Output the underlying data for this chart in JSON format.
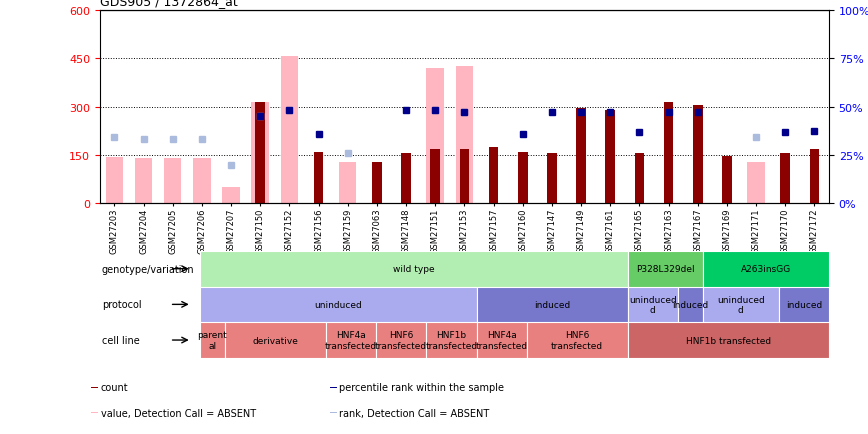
{
  "title": "GDS905 / 1372864_at",
  "samples": [
    "GSM27203",
    "GSM27204",
    "GSM27205",
    "GSM27206",
    "GSM27207",
    "GSM27150",
    "GSM27152",
    "GSM27156",
    "GSM27159",
    "GSM27063",
    "GSM27148",
    "GSM27151",
    "GSM27153",
    "GSM27157",
    "GSM27160",
    "GSM27147",
    "GSM27149",
    "GSM27161",
    "GSM27165",
    "GSM27163",
    "GSM27167",
    "GSM27169",
    "GSM27171",
    "GSM27170",
    "GSM27172"
  ],
  "count_present": [
    0,
    0,
    0,
    0,
    0,
    315,
    0,
    160,
    0,
    130,
    155,
    168,
    170,
    175,
    160,
    155,
    295,
    290,
    155,
    315,
    305,
    148,
    0,
    155,
    170
  ],
  "count_absent": [
    145,
    140,
    142,
    140,
    50,
    315,
    458,
    0,
    128,
    0,
    0,
    420,
    425,
    0,
    0,
    0,
    0,
    0,
    0,
    0,
    0,
    0,
    130,
    0,
    0
  ],
  "rank_present": [
    0,
    0,
    0,
    0,
    0,
    270,
    290,
    215,
    0,
    0,
    290,
    290,
    285,
    0,
    215,
    285,
    285,
    285,
    220,
    285,
    285,
    0,
    0,
    220,
    225
  ],
  "rank_absent": [
    205,
    200,
    200,
    200,
    120,
    270,
    290,
    0,
    155,
    0,
    0,
    290,
    285,
    0,
    0,
    0,
    0,
    0,
    0,
    0,
    0,
    0,
    205,
    0,
    0
  ],
  "ylim_left": [
    0,
    600
  ],
  "yticks_left": [
    0,
    150,
    300,
    450,
    600
  ],
  "yticks_right": [
    0,
    25,
    50,
    75,
    100
  ],
  "color_count_present": "#8B0000",
  "color_count_absent": "#FFB6C1",
  "color_rank_present": "#00008B",
  "color_rank_absent": "#AABBDD",
  "genotype_blocks": [
    {
      "label": "wild type",
      "start": 0,
      "end": 17,
      "color": "#B2EEB2"
    },
    {
      "label": "P328L329del",
      "start": 17,
      "end": 20,
      "color": "#66CC66"
    },
    {
      "label": "A263insGG",
      "start": 20,
      "end": 25,
      "color": "#00CC66"
    }
  ],
  "protocol_blocks": [
    {
      "label": "uninduced",
      "start": 0,
      "end": 11,
      "color": "#AAAAEE"
    },
    {
      "label": "induced",
      "start": 11,
      "end": 17,
      "color": "#7777CC"
    },
    {
      "label": "uninduced\nd",
      "start": 17,
      "end": 19,
      "color": "#AAAAEE"
    },
    {
      "label": "induced",
      "start": 19,
      "end": 20,
      "color": "#7777CC"
    },
    {
      "label": "uninduced\nd",
      "start": 20,
      "end": 23,
      "color": "#AAAAEE"
    },
    {
      "label": "induced",
      "start": 23,
      "end": 25,
      "color": "#7777CC"
    }
  ],
  "cellline_blocks": [
    {
      "label": "parent\nal",
      "start": 0,
      "end": 1,
      "color": "#E88080"
    },
    {
      "label": "derivative",
      "start": 1,
      "end": 5,
      "color": "#E88080"
    },
    {
      "label": "HNF4a\ntransfected",
      "start": 5,
      "end": 7,
      "color": "#E88080"
    },
    {
      "label": "HNF6\ntransfected",
      "start": 7,
      "end": 9,
      "color": "#E88080"
    },
    {
      "label": "HNF1b\ntransfected",
      "start": 9,
      "end": 11,
      "color": "#E88080"
    },
    {
      "label": "HNF4a\ntransfected",
      "start": 11,
      "end": 13,
      "color": "#E88080"
    },
    {
      "label": "HNF6\ntransfected",
      "start": 13,
      "end": 17,
      "color": "#E88080"
    },
    {
      "label": "HNF1b transfected",
      "start": 17,
      "end": 25,
      "color": "#CC6666"
    }
  ],
  "legend_items": [
    {
      "color": "#8B0000",
      "label": "count"
    },
    {
      "color": "#00008B",
      "label": "percentile rank within the sample"
    },
    {
      "color": "#FFB6C1",
      "label": "value, Detection Call = ABSENT"
    },
    {
      "color": "#AABBDD",
      "label": "rank, Detection Call = ABSENT"
    }
  ]
}
